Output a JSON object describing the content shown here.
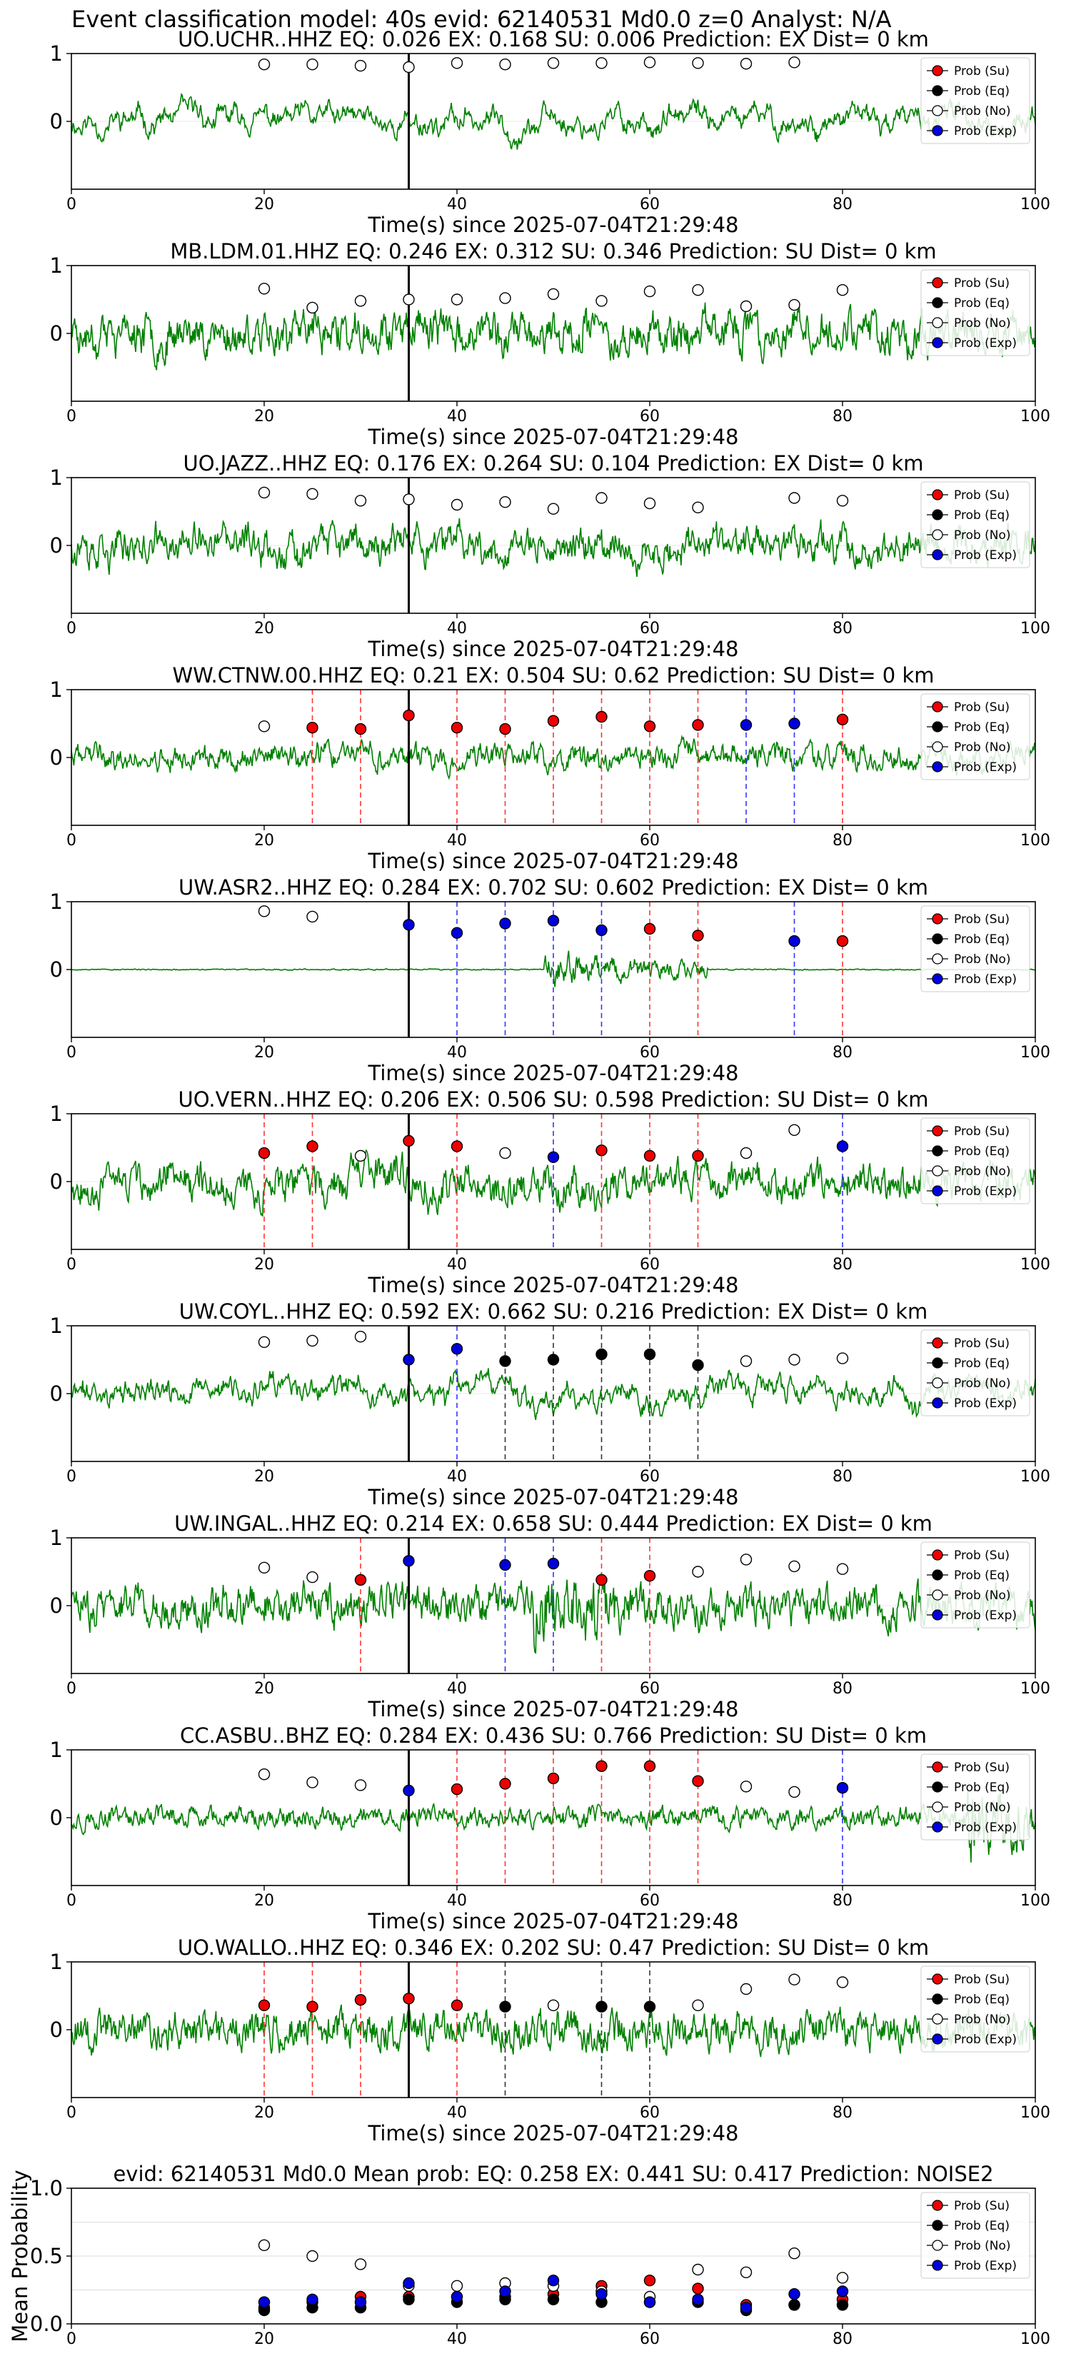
{
  "figure_title": "Event classification model: 40s evid: 62140531 Md0.0 z=0 Analyst: N/A",
  "colors": {
    "waveform": "#008000",
    "su": "#ee0000",
    "eq": "#000000",
    "no": "#ffffff",
    "exp": "#0000dd",
    "origin_line": "#000000",
    "su_line": "#ff3333",
    "eq_line": "#333333",
    "exp_line": "#3333ff"
  },
  "legend_labels": [
    "Prob (Su)",
    "Prob (Eq)",
    "Prob (No)",
    "Prob (Exp)"
  ],
  "chart_data": [
    {
      "type": "line",
      "title": "UO.UCHR..HHZ   EQ: 0.026  EX: 0.168  SU: 0.006   Prediction: EX    Dist= 0 km",
      "xlabel": "Time(s) since 2025-07-04T21:29:48",
      "xlim": [
        0,
        100
      ],
      "ylim": [
        -1,
        1
      ],
      "xticks": [
        0,
        20,
        40,
        60,
        80,
        100
      ],
      "yticks": [
        0,
        1
      ],
      "origin_time": 35,
      "wave": {
        "amp": 0.55,
        "noise": 0.12,
        "lowfreq": 0.55,
        "seed": 11
      },
      "points": [
        {
          "t": 20,
          "p": 0.84,
          "c": "no"
        },
        {
          "t": 25,
          "p": 0.84,
          "c": "no"
        },
        {
          "t": 30,
          "p": 0.82,
          "c": "no"
        },
        {
          "t": 35,
          "p": 0.8,
          "c": "no"
        },
        {
          "t": 40,
          "p": 0.86,
          "c": "no"
        },
        {
          "t": 45,
          "p": 0.84,
          "c": "no"
        },
        {
          "t": 50,
          "p": 0.86,
          "c": "no"
        },
        {
          "t": 55,
          "p": 0.86,
          "c": "no"
        },
        {
          "t": 60,
          "p": 0.87,
          "c": "no"
        },
        {
          "t": 65,
          "p": 0.86,
          "c": "no"
        },
        {
          "t": 70,
          "p": 0.85,
          "c": "no"
        },
        {
          "t": 75,
          "p": 0.87,
          "c": "no"
        }
      ]
    },
    {
      "type": "line",
      "title": "MB.LDM.01.HHZ   EQ: 0.246  EX: 0.312  SU: 0.346   Prediction: SU    Dist= 0 km",
      "xlabel": "Time(s) since 2025-07-04T21:29:48",
      "xlim": [
        0,
        100
      ],
      "ylim": [
        -1,
        1
      ],
      "xticks": [
        0,
        20,
        40,
        60,
        80,
        100
      ],
      "yticks": [
        0,
        1
      ],
      "origin_time": 35,
      "wave": {
        "amp": 0.5,
        "noise": 0.35,
        "lowfreq": 0.3,
        "seed": 23
      },
      "points": [
        {
          "t": 20,
          "p": 0.66,
          "c": "no"
        },
        {
          "t": 25,
          "p": 0.38,
          "c": "no"
        },
        {
          "t": 30,
          "p": 0.48,
          "c": "no"
        },
        {
          "t": 35,
          "p": 0.5,
          "c": "no"
        },
        {
          "t": 40,
          "p": 0.5,
          "c": "no"
        },
        {
          "t": 45,
          "p": 0.52,
          "c": "no"
        },
        {
          "t": 50,
          "p": 0.58,
          "c": "no"
        },
        {
          "t": 55,
          "p": 0.48,
          "c": "no"
        },
        {
          "t": 60,
          "p": 0.62,
          "c": "no"
        },
        {
          "t": 65,
          "p": 0.64,
          "c": "no"
        },
        {
          "t": 70,
          "p": 0.4,
          "c": "no"
        },
        {
          "t": 75,
          "p": 0.42,
          "c": "no"
        },
        {
          "t": 80,
          "p": 0.64,
          "c": "no"
        }
      ]
    },
    {
      "type": "line",
      "title": "UO.JAZZ..HHZ   EQ: 0.176  EX: 0.264  SU: 0.104   Prediction: EX    Dist= 0 km",
      "xlabel": "Time(s) since 2025-07-04T21:29:48",
      "xlim": [
        0,
        100
      ],
      "ylim": [
        -1,
        1
      ],
      "xticks": [
        0,
        20,
        40,
        60,
        80,
        100
      ],
      "yticks": [
        0,
        1
      ],
      "origin_time": 35,
      "wave": {
        "amp": 0.5,
        "noise": 0.3,
        "lowfreq": 0.35,
        "seed": 37
      },
      "points": [
        {
          "t": 20,
          "p": 0.78,
          "c": "no"
        },
        {
          "t": 25,
          "p": 0.76,
          "c": "no"
        },
        {
          "t": 30,
          "p": 0.66,
          "c": "no"
        },
        {
          "t": 35,
          "p": 0.68,
          "c": "no"
        },
        {
          "t": 40,
          "p": 0.6,
          "c": "no"
        },
        {
          "t": 45,
          "p": 0.64,
          "c": "no"
        },
        {
          "t": 50,
          "p": 0.54,
          "c": "no"
        },
        {
          "t": 55,
          "p": 0.7,
          "c": "no"
        },
        {
          "t": 60,
          "p": 0.62,
          "c": "no"
        },
        {
          "t": 65,
          "p": 0.56,
          "c": "no"
        },
        {
          "t": 75,
          "p": 0.7,
          "c": "no"
        },
        {
          "t": 80,
          "p": 0.66,
          "c": "no"
        }
      ]
    },
    {
      "type": "line",
      "title": "WW.CTNW.00.HHZ   EQ: 0.21  EX: 0.504  SU: 0.62   Prediction: SU    Dist= 0 km",
      "xlabel": "Time(s) since 2025-07-04T21:29:48",
      "xlim": [
        0,
        100
      ],
      "ylim": [
        -1,
        1
      ],
      "xticks": [
        0,
        20,
        40,
        60,
        80,
        100
      ],
      "yticks": [
        0,
        1
      ],
      "origin_time": 35,
      "wave": {
        "amp": 0.35,
        "noise": 0.2,
        "lowfreq": 0.25,
        "seed": 41
      },
      "points": [
        {
          "t": 20,
          "p": 0.46,
          "c": "no"
        },
        {
          "t": 25,
          "p": 0.44,
          "c": "su"
        },
        {
          "t": 30,
          "p": 0.42,
          "c": "su"
        },
        {
          "t": 35,
          "p": 0.62,
          "c": "su"
        },
        {
          "t": 40,
          "p": 0.44,
          "c": "su"
        },
        {
          "t": 45,
          "p": 0.42,
          "c": "su"
        },
        {
          "t": 50,
          "p": 0.54,
          "c": "su"
        },
        {
          "t": 55,
          "p": 0.6,
          "c": "su"
        },
        {
          "t": 60,
          "p": 0.46,
          "c": "su"
        },
        {
          "t": 65,
          "p": 0.48,
          "c": "su"
        },
        {
          "t": 70,
          "p": 0.48,
          "c": "exp"
        },
        {
          "t": 75,
          "p": 0.5,
          "c": "exp"
        },
        {
          "t": 80,
          "p": 0.56,
          "c": "su"
        }
      ]
    },
    {
      "type": "line",
      "title": "UW.ASR2..HHZ   EQ: 0.284  EX: 0.702  SU: 0.602   Prediction: EX    Dist= 0 km",
      "xlabel": "Time(s) since 2025-07-04T21:29:48",
      "xlim": [
        0,
        100
      ],
      "ylim": [
        -1,
        1
      ],
      "xticks": [
        0,
        20,
        40,
        60,
        80,
        100
      ],
      "yticks": [
        0,
        1
      ],
      "origin_time": 35,
      "wave": {
        "amp": 0.02,
        "noise": 0.01,
        "lowfreq": 0.0,
        "seed": 53,
        "burst": [
          49,
          66,
          0.6
        ]
      },
      "points": [
        {
          "t": 20,
          "p": 0.86,
          "c": "no"
        },
        {
          "t": 25,
          "p": 0.78,
          "c": "no"
        },
        {
          "t": 35,
          "p": 0.66,
          "c": "exp"
        },
        {
          "t": 40,
          "p": 0.54,
          "c": "exp"
        },
        {
          "t": 45,
          "p": 0.68,
          "c": "exp"
        },
        {
          "t": 50,
          "p": 0.72,
          "c": "exp"
        },
        {
          "t": 55,
          "p": 0.58,
          "c": "exp"
        },
        {
          "t": 60,
          "p": 0.6,
          "c": "su"
        },
        {
          "t": 65,
          "p": 0.5,
          "c": "su"
        },
        {
          "t": 75,
          "p": 0.42,
          "c": "exp"
        },
        {
          "t": 80,
          "p": 0.42,
          "c": "su"
        }
      ]
    },
    {
      "type": "line",
      "title": "UO.VERN..HHZ   EQ: 0.206  EX: 0.506  SU: 0.598   Prediction: SU    Dist= 0 km",
      "xlabel": "Time(s) since 2025-07-04T21:29:48",
      "xlim": [
        0,
        100
      ],
      "ylim": [
        -1,
        1
      ],
      "xticks": [
        0,
        20,
        40,
        60,
        80,
        100
      ],
      "yticks": [
        0,
        1
      ],
      "origin_time": 35,
      "wave": {
        "amp": 0.45,
        "noise": 0.3,
        "lowfreq": 0.4,
        "seed": 67
      },
      "points": [
        {
          "t": 20,
          "p": 0.42,
          "c": "su"
        },
        {
          "t": 25,
          "p": 0.52,
          "c": "su"
        },
        {
          "t": 30,
          "p": 0.38,
          "c": "no"
        },
        {
          "t": 35,
          "p": 0.6,
          "c": "su"
        },
        {
          "t": 40,
          "p": 0.52,
          "c": "su"
        },
        {
          "t": 45,
          "p": 0.42,
          "c": "no"
        },
        {
          "t": 50,
          "p": 0.36,
          "c": "exp"
        },
        {
          "t": 55,
          "p": 0.46,
          "c": "su"
        },
        {
          "t": 60,
          "p": 0.38,
          "c": "su"
        },
        {
          "t": 65,
          "p": 0.38,
          "c": "su"
        },
        {
          "t": 70,
          "p": 0.42,
          "c": "no"
        },
        {
          "t": 75,
          "p": 0.76,
          "c": "no"
        },
        {
          "t": 80,
          "p": 0.52,
          "c": "exp"
        }
      ]
    },
    {
      "type": "line",
      "title": "UW.COYL..HHZ   EQ: 0.592  EX: 0.662  SU: 0.216   Prediction: EX    Dist= 0 km",
      "xlabel": "Time(s) since 2025-07-04T21:29:48",
      "xlim": [
        0,
        100
      ],
      "ylim": [
        -1,
        1
      ],
      "xticks": [
        0,
        20,
        40,
        60,
        80,
        100
      ],
      "yticks": [
        0,
        1
      ],
      "origin_time": 35,
      "wave": {
        "amp": 0.5,
        "noise": 0.15,
        "lowfreq": 0.5,
        "seed": 71
      },
      "points": [
        {
          "t": 20,
          "p": 0.76,
          "c": "no"
        },
        {
          "t": 25,
          "p": 0.78,
          "c": "no"
        },
        {
          "t": 30,
          "p": 0.84,
          "c": "no"
        },
        {
          "t": 35,
          "p": 0.5,
          "c": "exp"
        },
        {
          "t": 40,
          "p": 0.66,
          "c": "exp"
        },
        {
          "t": 45,
          "p": 0.48,
          "c": "eq"
        },
        {
          "t": 50,
          "p": 0.5,
          "c": "eq"
        },
        {
          "t": 55,
          "p": 0.58,
          "c": "eq"
        },
        {
          "t": 60,
          "p": 0.58,
          "c": "eq"
        },
        {
          "t": 65,
          "p": 0.42,
          "c": "eq"
        },
        {
          "t": 70,
          "p": 0.48,
          "c": "no"
        },
        {
          "t": 75,
          "p": 0.5,
          "c": "no"
        },
        {
          "t": 80,
          "p": 0.52,
          "c": "no"
        }
      ]
    },
    {
      "type": "line",
      "title": "UW.INGAL..HHZ   EQ: 0.214  EX: 0.658  SU: 0.444   Prediction: EX    Dist= 0 km",
      "xlabel": "Time(s) since 2025-07-04T21:29:48",
      "xlim": [
        0,
        100
      ],
      "ylim": [
        -1,
        1
      ],
      "xticks": [
        0,
        20,
        40,
        60,
        80,
        100
      ],
      "yticks": [
        0,
        1
      ],
      "origin_time": 35,
      "wave": {
        "amp": 0.4,
        "noise": 0.35,
        "lowfreq": 0.2,
        "seed": 83,
        "burst": [
          48,
          58,
          0.45
        ]
      },
      "points": [
        {
          "t": 20,
          "p": 0.56,
          "c": "no"
        },
        {
          "t": 25,
          "p": 0.42,
          "c": "no"
        },
        {
          "t": 30,
          "p": 0.38,
          "c": "su"
        },
        {
          "t": 35,
          "p": 0.66,
          "c": "exp"
        },
        {
          "t": 45,
          "p": 0.6,
          "c": "exp"
        },
        {
          "t": 50,
          "p": 0.62,
          "c": "exp"
        },
        {
          "t": 55,
          "p": 0.38,
          "c": "su"
        },
        {
          "t": 60,
          "p": 0.44,
          "c": "su"
        },
        {
          "t": 65,
          "p": 0.5,
          "c": "no"
        },
        {
          "t": 70,
          "p": 0.68,
          "c": "no"
        },
        {
          "t": 75,
          "p": 0.58,
          "c": "no"
        },
        {
          "t": 80,
          "p": 0.54,
          "c": "no"
        }
      ]
    },
    {
      "type": "line",
      "title": "CC.ASBU..BHZ   EQ: 0.284  EX: 0.436  SU: 0.766   Prediction: SU    Dist= 0 km",
      "xlabel": "Time(s) since 2025-07-04T21:29:48",
      "xlim": [
        0,
        100
      ],
      "ylim": [
        -1,
        1
      ],
      "xticks": [
        0,
        20,
        40,
        60,
        80,
        100
      ],
      "yticks": [
        0,
        1
      ],
      "origin_time": 35,
      "wave": {
        "amp": 0.18,
        "noise": 0.18,
        "lowfreq": 0.05,
        "seed": 97,
        "burst": [
          93,
          100,
          0.6
        ]
      },
      "points": [
        {
          "t": 20,
          "p": 0.64,
          "c": "no"
        },
        {
          "t": 25,
          "p": 0.52,
          "c": "no"
        },
        {
          "t": 30,
          "p": 0.48,
          "c": "no"
        },
        {
          "t": 35,
          "p": 0.4,
          "c": "exp"
        },
        {
          "t": 40,
          "p": 0.42,
          "c": "su"
        },
        {
          "t": 45,
          "p": 0.5,
          "c": "su"
        },
        {
          "t": 50,
          "p": 0.58,
          "c": "su"
        },
        {
          "t": 55,
          "p": 0.76,
          "c": "su"
        },
        {
          "t": 60,
          "p": 0.76,
          "c": "su"
        },
        {
          "t": 65,
          "p": 0.54,
          "c": "su"
        },
        {
          "t": 70,
          "p": 0.46,
          "c": "no"
        },
        {
          "t": 75,
          "p": 0.38,
          "c": "no"
        },
        {
          "t": 80,
          "p": 0.44,
          "c": "exp"
        }
      ]
    },
    {
      "type": "line",
      "title": "UO.WALLO..HHZ   EQ: 0.346  EX: 0.202  SU: 0.47   Prediction: SU    Dist= 0 km",
      "xlabel": "Time(s) since 2025-07-04T21:29:48",
      "xlim": [
        0,
        100
      ],
      "ylim": [
        -1,
        1
      ],
      "xticks": [
        0,
        20,
        40,
        60,
        80,
        100
      ],
      "yticks": [
        0,
        1
      ],
      "origin_time": 35,
      "wave": {
        "amp": 0.3,
        "noise": 0.35,
        "lowfreq": 0.1,
        "seed": 101
      },
      "points": [
        {
          "t": 20,
          "p": 0.36,
          "c": "su"
        },
        {
          "t": 25,
          "p": 0.34,
          "c": "su"
        },
        {
          "t": 30,
          "p": 0.44,
          "c": "su"
        },
        {
          "t": 35,
          "p": 0.46,
          "c": "su"
        },
        {
          "t": 40,
          "p": 0.36,
          "c": "su"
        },
        {
          "t": 45,
          "p": 0.34,
          "c": "eq"
        },
        {
          "t": 50,
          "p": 0.36,
          "c": "no"
        },
        {
          "t": 55,
          "p": 0.34,
          "c": "eq"
        },
        {
          "t": 60,
          "p": 0.34,
          "c": "eq"
        },
        {
          "t": 65,
          "p": 0.36,
          "c": "no"
        },
        {
          "t": 70,
          "p": 0.6,
          "c": "no"
        },
        {
          "t": 75,
          "p": 0.74,
          "c": "no"
        },
        {
          "t": 80,
          "p": 0.7,
          "c": "no"
        }
      ]
    },
    {
      "type": "scatter",
      "title": "evid: 62140531  Md0.0   Mean prob:   EQ: 0.258  EX: 0.441  SU: 0.417   Prediction: NOISE2",
      "xlabel": "",
      "ylabel": "Mean Probability",
      "xlim": [
        0,
        100
      ],
      "ylim": [
        0,
        1
      ],
      "xticks": [
        0,
        20,
        40,
        60,
        80,
        100
      ],
      "yticks": [
        0.0,
        0.5,
        1.0
      ],
      "grid": true,
      "series": [
        {
          "name": "Prob (Su)",
          "key": "su",
          "x": [
            20,
            25,
            30,
            35,
            40,
            45,
            50,
            55,
            60,
            65,
            70,
            75,
            80
          ],
          "y": [
            0.12,
            0.16,
            0.2,
            0.2,
            0.2,
            0.2,
            0.22,
            0.28,
            0.32,
            0.26,
            0.14,
            0.14,
            0.18
          ]
        },
        {
          "name": "Prob (Eq)",
          "key": "eq",
          "x": [
            20,
            25,
            30,
            35,
            40,
            45,
            50,
            55,
            60,
            65,
            70,
            75,
            80
          ],
          "y": [
            0.1,
            0.12,
            0.12,
            0.18,
            0.16,
            0.18,
            0.18,
            0.16,
            0.16,
            0.16,
            0.1,
            0.14,
            0.14
          ]
        },
        {
          "name": "Prob (No)",
          "key": "no",
          "x": [
            20,
            25,
            30,
            35,
            40,
            45,
            50,
            55,
            60,
            65,
            70,
            75,
            80
          ],
          "y": [
            0.58,
            0.5,
            0.44,
            0.28,
            0.28,
            0.3,
            0.28,
            0.24,
            0.2,
            0.4,
            0.38,
            0.52,
            0.34
          ]
        },
        {
          "name": "Prob (Exp)",
          "key": "exp",
          "x": [
            20,
            25,
            30,
            35,
            40,
            45,
            50,
            55,
            60,
            65,
            70,
            75,
            80
          ],
          "y": [
            0.16,
            0.18,
            0.16,
            0.3,
            0.2,
            0.24,
            0.32,
            0.22,
            0.16,
            0.18,
            0.12,
            0.22,
            0.24
          ]
        }
      ]
    }
  ]
}
